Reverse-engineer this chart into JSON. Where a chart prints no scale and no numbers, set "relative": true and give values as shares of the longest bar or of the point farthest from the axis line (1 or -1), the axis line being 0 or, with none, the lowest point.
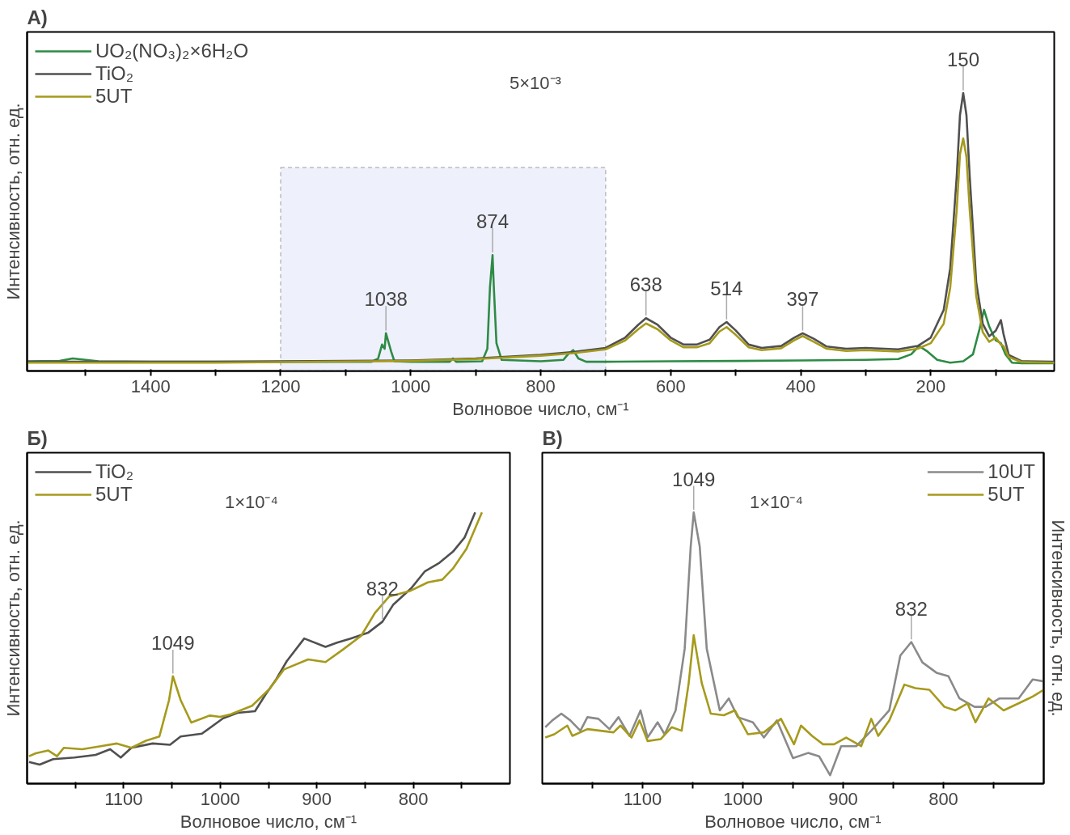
{
  "chart_data": [
    {
      "type": "line",
      "title": "A)",
      "xlabel": "Волновое число, см⁻¹",
      "ylabel": "Интенсивность, отн. ед.",
      "relative": true,
      "legend": "top left",
      "xlim": [
        1590,
        10
      ],
      "xticks": [
        1400,
        1200,
        1000,
        800,
        600,
        400,
        200,
        {
          "value": 1500,
          "label": null
        },
        {
          "value": 1300,
          "label": null
        },
        {
          "value": 1100,
          "label": null
        },
        {
          "value": 900,
          "label": null
        },
        {
          "value": 700,
          "label": null
        },
        {
          "value": 500,
          "label": null
        },
        {
          "value": 300,
          "label": null
        },
        {
          "value": 100,
          "label": null
        }
      ],
      "bands": [
        {
          "axis": "x",
          "from": 1200,
          "to": 700,
          "color": "#eef0fb"
        }
      ],
      "annotations": [
        "5×10⁻³",
        {
          "text": "1038",
          "x": 1038,
          "y": 0.136
        },
        {
          "text": "874",
          "x": 874,
          "y": 0.417
        },
        {
          "text": "638",
          "x": 638,
          "y": 0.19
        },
        {
          "text": "514",
          "x": 514,
          "y": 0.176
        },
        {
          "text": "397",
          "x": 397,
          "y": 0.136
        },
        {
          "text": "150",
          "x": 150,
          "y": 1.0
        }
      ],
      "series": [
        {
          "name": "UO₂(NO₃)₂×6H₂O",
          "color": "#2e8b45",
          "x": [
            1590,
            1540,
            1520,
            1500,
            1480,
            1400,
            1300,
            1200,
            1100,
            1060,
            1050,
            1044,
            1040,
            1038,
            1030,
            1025,
            1000,
            940,
            935,
            930,
            890,
            882,
            878,
            874,
            872,
            868,
            860,
            800,
            765,
            758,
            750,
            742,
            730,
            700,
            600,
            500,
            400,
            300,
            250,
            230,
            218,
            205,
            190,
            170,
            150,
            135,
            125,
            118,
            110,
            100,
            92,
            85,
            75,
            60,
            10
          ],
          "values": [
            0.035,
            0.036,
            0.045,
            0.04,
            0.035,
            0.033,
            0.033,
            0.033,
            0.033,
            0.033,
            0.045,
            0.095,
            0.08,
            0.136,
            0.07,
            0.035,
            0.033,
            0.033,
            0.045,
            0.033,
            0.035,
            0.08,
            0.3,
            0.417,
            0.3,
            0.1,
            0.04,
            0.035,
            0.04,
            0.06,
            0.075,
            0.045,
            0.033,
            0.033,
            0.035,
            0.036,
            0.038,
            0.04,
            0.043,
            0.06,
            0.09,
            0.07,
            0.04,
            0.03,
            0.035,
            0.06,
            0.15,
            0.22,
            0.16,
            0.11,
            0.1,
            0.06,
            0.03,
            0.028,
            0.028
          ]
        },
        {
          "name": "TiO₂",
          "color": "#505050",
          "x": [
            1590,
            1500,
            1400,
            1300,
            1200,
            1100,
            1000,
            900,
            800,
            750,
            700,
            670,
            650,
            638,
            620,
            600,
            580,
            560,
            540,
            525,
            514,
            500,
            480,
            460,
            430,
            410,
            397,
            380,
            360,
            330,
            300,
            250,
            220,
            200,
            180,
            170,
            160,
            155,
            150,
            145,
            140,
            130,
            120,
            110,
            100,
            92,
            88,
            80,
            60,
            10
          ],
          "values": [
            0.033,
            0.033,
            0.033,
            0.033,
            0.035,
            0.036,
            0.038,
            0.045,
            0.058,
            0.068,
            0.083,
            0.12,
            0.166,
            0.19,
            0.166,
            0.12,
            0.095,
            0.095,
            0.113,
            0.158,
            0.176,
            0.146,
            0.095,
            0.083,
            0.09,
            0.12,
            0.136,
            0.116,
            0.088,
            0.08,
            0.083,
            0.078,
            0.09,
            0.12,
            0.22,
            0.37,
            0.7,
            0.92,
            1.0,
            0.92,
            0.7,
            0.32,
            0.17,
            0.125,
            0.145,
            0.183,
            0.133,
            0.058,
            0.035,
            0.033
          ]
        },
        {
          "name": "5UT",
          "color": "#a69a1c",
          "x": [
            1590,
            1500,
            1400,
            1300,
            1200,
            1100,
            1000,
            900,
            800,
            750,
            700,
            670,
            650,
            638,
            620,
            600,
            580,
            560,
            540,
            525,
            514,
            500,
            480,
            460,
            430,
            410,
            397,
            380,
            360,
            330,
            300,
            250,
            220,
            200,
            180,
            170,
            160,
            155,
            150,
            145,
            140,
            130,
            120,
            110,
            100,
            92,
            88,
            80,
            60,
            10
          ],
          "values": [
            0.03,
            0.03,
            0.03,
            0.03,
            0.032,
            0.034,
            0.036,
            0.043,
            0.055,
            0.064,
            0.078,
            0.11,
            0.15,
            0.171,
            0.15,
            0.11,
            0.085,
            0.085,
            0.1,
            0.142,
            0.158,
            0.13,
            0.085,
            0.075,
            0.082,
            0.11,
            0.126,
            0.105,
            0.08,
            0.072,
            0.075,
            0.07,
            0.08,
            0.1,
            0.17,
            0.3,
            0.58,
            0.78,
            0.837,
            0.77,
            0.58,
            0.27,
            0.14,
            0.105,
            0.12,
            0.095,
            0.09,
            0.05,
            0.032,
            0.03
          ]
        }
      ]
    },
    {
      "type": "line",
      "title": "Б)",
      "xlabel": "Волновое число, см⁻¹",
      "ylabel": "Интенсивность, отн. ед.",
      "relative": true,
      "legend": "top left",
      "xlim": [
        1200,
        700
      ],
      "xticks": [
        1100,
        1000,
        900,
        800,
        {
          "value": 1150,
          "label": null
        },
        {
          "value": 1050,
          "label": null
        },
        {
          "value": 950,
          "label": null
        },
        {
          "value": 850,
          "label": null
        },
        {
          "value": 750,
          "label": null
        }
      ],
      "annotations": [
        "1×10⁻⁴",
        {
          "text": "1049",
          "x": 1049,
          "y": 0.396
        },
        {
          "text": "832",
          "x": 832,
          "y": 0.597
        }
      ],
      "series": [
        {
          "name": "TiO₂",
          "color": "#505050",
          "x": [
            1198,
            1187,
            1173,
            1151,
            1129,
            1114,
            1103,
            1092,
            1070,
            1052,
            1041,
            1019,
            997,
            982,
            964,
            953,
            942,
            931,
            913,
            891,
            879,
            865,
            847,
            832,
            821,
            802,
            788,
            773,
            759,
            747,
            736
          ],
          "values": [
            0.08,
            0.07,
            0.09,
            0.096,
            0.106,
            0.127,
            0.096,
            0.132,
            0.148,
            0.143,
            0.174,
            0.184,
            0.241,
            0.261,
            0.267,
            0.329,
            0.385,
            0.452,
            0.535,
            0.504,
            0.52,
            0.535,
            0.556,
            0.597,
            0.659,
            0.721,
            0.783,
            0.814,
            0.855,
            0.907,
            1.0
          ]
        },
        {
          "name": "5UT",
          "color": "#a69a1c",
          "x": [
            1198,
            1191,
            1178,
            1169,
            1162,
            1143,
            1125,
            1107,
            1092,
            1077,
            1063,
            1053,
            1049,
            1041,
            1030,
            1011,
            1000,
            989,
            967,
            949,
            934,
            909,
            891,
            873,
            854,
            840,
            825,
            803,
            785,
            770,
            759,
            745,
            729
          ],
          "values": [
            0.101,
            0.112,
            0.122,
            0.101,
            0.132,
            0.127,
            0.137,
            0.148,
            0.132,
            0.158,
            0.174,
            0.308,
            0.396,
            0.308,
            0.225,
            0.251,
            0.246,
            0.256,
            0.287,
            0.349,
            0.421,
            0.458,
            0.448,
            0.494,
            0.545,
            0.628,
            0.69,
            0.711,
            0.742,
            0.752,
            0.793,
            0.866,
            1.0
          ]
        }
      ]
    },
    {
      "type": "line",
      "title": "В)",
      "xlabel": "Волновое число, см⁻¹",
      "y2label": "Интенсивность, отн. ед.",
      "relative": true,
      "legend": "top right",
      "xlim": [
        1200,
        700
      ],
      "xticks": [
        1100,
        1000,
        900,
        800,
        {
          "value": 1150,
          "label": null
        },
        {
          "value": 1050,
          "label": null
        },
        {
          "value": 950,
          "label": null
        },
        {
          "value": 850,
          "label": null
        },
        {
          "value": 750,
          "label": null
        }
      ],
      "annotations": [
        "1×10⁻⁴",
        {
          "text": "1049",
          "x": 1049,
          "y": 1.0
        },
        {
          "text": "832",
          "x": 832,
          "y": 0.522
        }
      ],
      "series": [
        {
          "name": "10UT",
          "color": "#8a8a8a",
          "x": [
            1197,
            1190,
            1181,
            1172,
            1162,
            1155,
            1144,
            1133,
            1124,
            1113,
            1102,
            1095,
            1085,
            1078,
            1067,
            1058,
            1052,
            1049,
            1043,
            1036,
            1023,
            1014,
            1005,
            990,
            979,
            966,
            950,
            935,
            924,
            913,
            902,
            887,
            872,
            854,
            843,
            832,
            821,
            807,
            795,
            784,
            769,
            758,
            744,
            725,
            711,
            700
          ],
          "values": [
            0.208,
            0.233,
            0.258,
            0.233,
            0.195,
            0.245,
            0.239,
            0.201,
            0.245,
            0.176,
            0.27,
            0.17,
            0.226,
            0.182,
            0.27,
            0.497,
            0.874,
            1.0,
            0.874,
            0.497,
            0.27,
            0.314,
            0.245,
            0.226,
            0.17,
            0.233,
            0.094,
            0.113,
            0.101,
            0.031,
            0.138,
            0.138,
            0.195,
            0.27,
            0.472,
            0.522,
            0.447,
            0.409,
            0.396,
            0.314,
            0.283,
            0.283,
            0.314,
            0.314,
            0.384,
            0.377
          ]
        },
        {
          "name": "5UT",
          "color": "#a69a1c",
          "x": [
            1197,
            1188,
            1175,
            1170,
            1155,
            1129,
            1122,
            1111,
            1103,
            1095,
            1082,
            1071,
            1061,
            1054,
            1049,
            1041,
            1032,
            1019,
            1008,
            995,
            979,
            962,
            949,
            942,
            931,
            920,
            909,
            897,
            882,
            872,
            865,
            854,
            839,
            828,
            814,
            799,
            788,
            776,
            768,
            755,
            740,
            725,
            711,
            700
          ],
          "values": [
            0.17,
            0.182,
            0.214,
            0.176,
            0.201,
            0.189,
            0.214,
            0.17,
            0.233,
            0.157,
            0.164,
            0.208,
            0.195,
            0.371,
            0.547,
            0.371,
            0.258,
            0.252,
            0.27,
            0.182,
            0.189,
            0.239,
            0.145,
            0.214,
            0.176,
            0.145,
            0.145,
            0.17,
            0.138,
            0.239,
            0.176,
            0.233,
            0.365,
            0.352,
            0.346,
            0.283,
            0.27,
            0.296,
            0.226,
            0.314,
            0.27,
            0.296,
            0.321,
            0.346
          ]
        }
      ]
    }
  ]
}
